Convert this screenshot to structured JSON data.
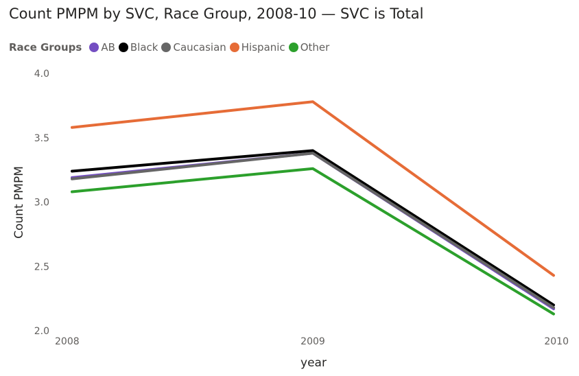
{
  "chart_data": {
    "type": "line",
    "title": "Count PMPM by SVC, Race Group, 2008-10 — SVC is Total",
    "xlabel": "year",
    "ylabel": "Count PMPM",
    "legend_title": "Race Groups",
    "legend_position": "top-left",
    "categories": [
      "2008",
      "2009",
      "2010"
    ],
    "ylim": [
      2.0,
      4.0
    ],
    "yticks": [
      "2.0",
      "2.5",
      "3.0",
      "3.5",
      "4.0"
    ],
    "grid": false,
    "series": [
      {
        "name": "AB",
        "color": "#744EC2",
        "values": [
          3.19,
          3.38,
          2.17
        ]
      },
      {
        "name": "Black",
        "color": "#000000",
        "values": [
          3.24,
          3.4,
          2.2
        ]
      },
      {
        "name": "Caucasian",
        "color": "#666666",
        "values": [
          3.18,
          3.38,
          2.18
        ]
      },
      {
        "name": "Hispanic",
        "color": "#E66C37",
        "values": [
          3.58,
          3.78,
          2.43
        ]
      },
      {
        "name": "Other",
        "color": "#2CA02C",
        "values": [
          3.08,
          3.26,
          2.13
        ]
      }
    ]
  }
}
